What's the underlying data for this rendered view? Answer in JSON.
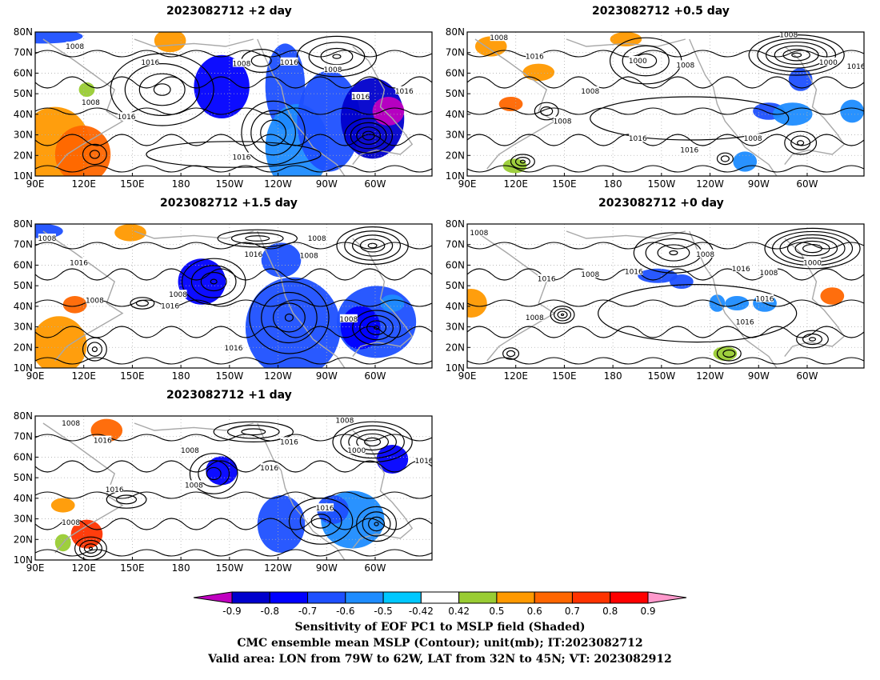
{
  "panels": [
    {
      "title": "2023082712 +2 day"
    },
    {
      "title": "2023082712 +0.5 day"
    },
    {
      "title": "2023082712 +1.5 day"
    },
    {
      "title": "2023082712 +0 day"
    },
    {
      "title": "2023082712 +1 day"
    }
  ],
  "lat_labels": [
    "80N",
    "70N",
    "60N",
    "50N",
    "40N",
    "30N",
    "20N",
    "10N"
  ],
  "lon_labels": [
    "90E",
    "120E",
    "150E",
    "180",
    "150W",
    "120W",
    "90W",
    "60W"
  ],
  "contour_labels": [
    "1000",
    "1008",
    "1016"
  ],
  "colorbar": {
    "ticks": [
      "-0.9",
      "-0.8",
      "-0.7",
      "-0.6",
      "-0.5",
      "-0.42",
      "0.42",
      "0.5",
      "0.6",
      "0.7",
      "0.8",
      "0.9"
    ],
    "colors": [
      "#c000c0",
      "#0000cc",
      "#0000ff",
      "#1e50ff",
      "#1e8cff",
      "#00c8ff",
      "#ffffff",
      "#99cc33",
      "#ff9900",
      "#ff6600",
      "#ff3300",
      "#ff0000",
      "#ff99cc"
    ]
  },
  "caption": {
    "line1": "Sensitivity of EOF PC1 to MSLP field (Shaded)",
    "line2": "CMC ensemble mean MSLP (Contour); unit(mb); IT:2023082712",
    "line3": "Valid area: LON from 79W to 62W, LAT from 32N to 45N; VT: 2023082912"
  }
}
